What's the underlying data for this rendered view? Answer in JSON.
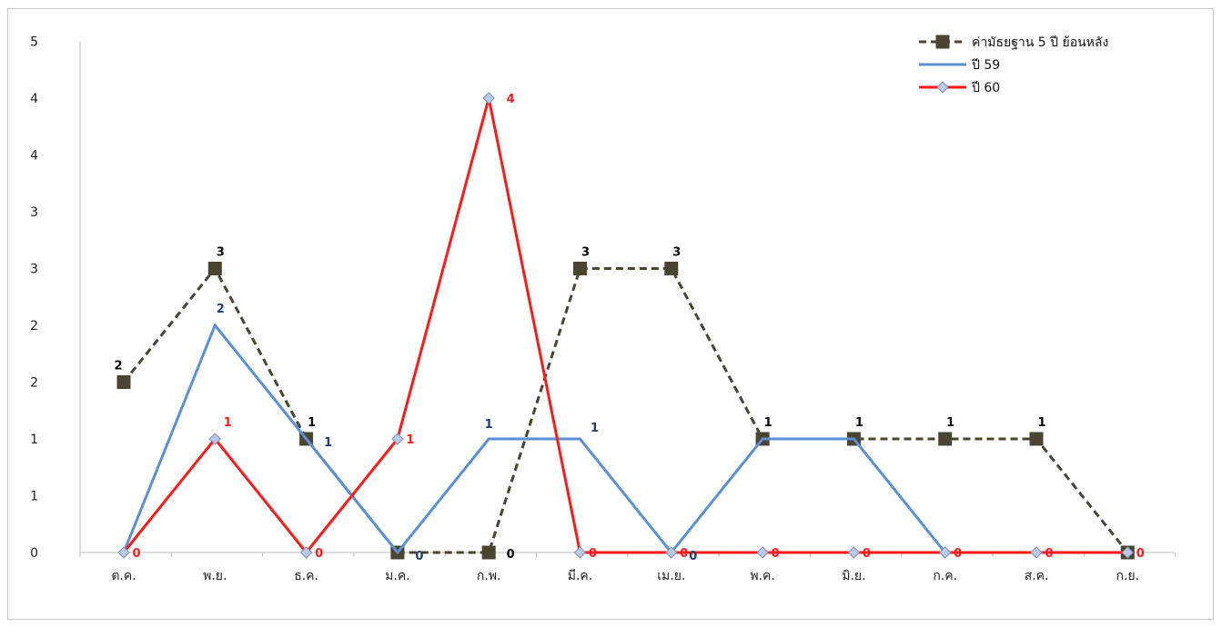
{
  "chart_data": {
    "type": "line",
    "title": "",
    "xlabel": "",
    "ylabel": "",
    "categories": [
      "ต.ค.",
      "พ.ย.",
      "ธ.ค.",
      "ม.ค.",
      "ก.พ.",
      "มี.ค.",
      "เม.ย.",
      "พ.ค.",
      "มิ.ย.",
      "ก.ค.",
      "ส.ค.",
      "ก.ย."
    ],
    "y_tick_labels": [
      "0",
      "1",
      "1",
      "2",
      "2",
      "3",
      "3",
      "4",
      "4",
      "5"
    ],
    "ylim": [
      0,
      4.5
    ],
    "grid": false,
    "legend_position": "top-right",
    "series": [
      {
        "name": "ค่ามัธยฐาน 5 ปี ย้อนหลัง",
        "color": "#4a4530",
        "style": "dashed",
        "marker": "square",
        "values": [
          1.5,
          2.5,
          1,
          0,
          0,
          2.5,
          2.5,
          1,
          1,
          1,
          1,
          0
        ],
        "labels": [
          "2",
          "3",
          "1",
          "",
          "0",
          "3",
          "3",
          "1",
          "1",
          "1",
          "1",
          ""
        ]
      },
      {
        "name": "ปี 59",
        "color": "#5b8fd6",
        "style": "solid",
        "marker": "none",
        "values": [
          0,
          2,
          1,
          0,
          1,
          1,
          0,
          1,
          1,
          0,
          0,
          0
        ],
        "labels": [
          "",
          "2",
          "1",
          "0",
          "1",
          "1",
          "0",
          "",
          "",
          "",
          "",
          ""
        ]
      },
      {
        "name": "ปี 60",
        "color": "#ff1a1a",
        "style": "solid",
        "marker": "diamond",
        "values": [
          0,
          1,
          0,
          1,
          4,
          0,
          0,
          0,
          0,
          0,
          0,
          0
        ],
        "labels": [
          "0",
          "1",
          "0",
          "1",
          "4",
          "0",
          "0",
          "0",
          "0",
          "0",
          "0",
          "0"
        ]
      }
    ]
  }
}
